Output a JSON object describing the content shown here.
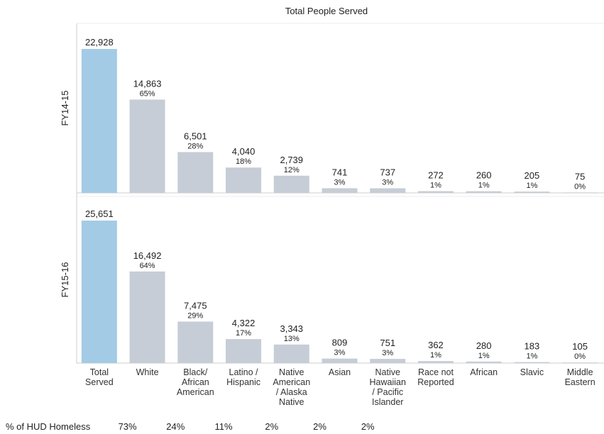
{
  "chart_data": {
    "type": "bar",
    "title": "Total People Served",
    "categories": [
      "Total\nServed",
      "White",
      "Black/\nAfrican\nAmerican",
      "Latino /\nHispanic",
      "Native\nAmerican\n/ Alaska\nNative",
      "Asian",
      "Native\nHawaiian\n/ Pacific\nIslander",
      "Race not\nReported",
      "African",
      "Slavic",
      "Middle\nEastern"
    ],
    "colors": [
      "#a3cbe6",
      "#c7cdd6",
      "#c7cdd6",
      "#c7cdd6",
      "#c7cdd6",
      "#c7cdd6",
      "#c7cdd6",
      "#c7cdd6",
      "#c7cdd6",
      "#c7cdd6",
      "#c7cdd6"
    ],
    "series": [
      {
        "name": "FY14-15",
        "ylim": [
          0,
          27000
        ],
        "values": [
          22928,
          14863,
          6501,
          4040,
          2739,
          741,
          737,
          272,
          260,
          205,
          75
        ],
        "value_labels": [
          "22,928",
          "14,863",
          "6,501",
          "4,040",
          "2,739",
          "741",
          "737",
          "272",
          "260",
          "205",
          "75"
        ],
        "percent_labels": [
          null,
          "65%",
          "28%",
          "18%",
          "12%",
          "3%",
          "3%",
          "1%",
          "1%",
          "1%",
          "0%"
        ]
      },
      {
        "name": "FY15-16",
        "ylim": [
          0,
          30000
        ],
        "values": [
          25651,
          16492,
          7475,
          4322,
          3343,
          809,
          751,
          362,
          280,
          183,
          105
        ],
        "value_labels": [
          "25,651",
          "16,492",
          "7,475",
          "4,322",
          "3,343",
          "809",
          "751",
          "362",
          "280",
          "183",
          "105"
        ],
        "percent_labels": [
          null,
          "64%",
          "29%",
          "17%",
          "13%",
          "3%",
          "3%",
          "1%",
          "1%",
          "1%",
          "0%"
        ]
      }
    ],
    "hud": {
      "label": "% of HUD Homeless",
      "color": "#e8822e",
      "values": [
        73,
        24,
        11,
        2,
        2,
        2
      ],
      "value_labels": [
        "73%",
        "24%",
        "11%",
        "2%",
        "2%",
        "2%"
      ]
    }
  }
}
